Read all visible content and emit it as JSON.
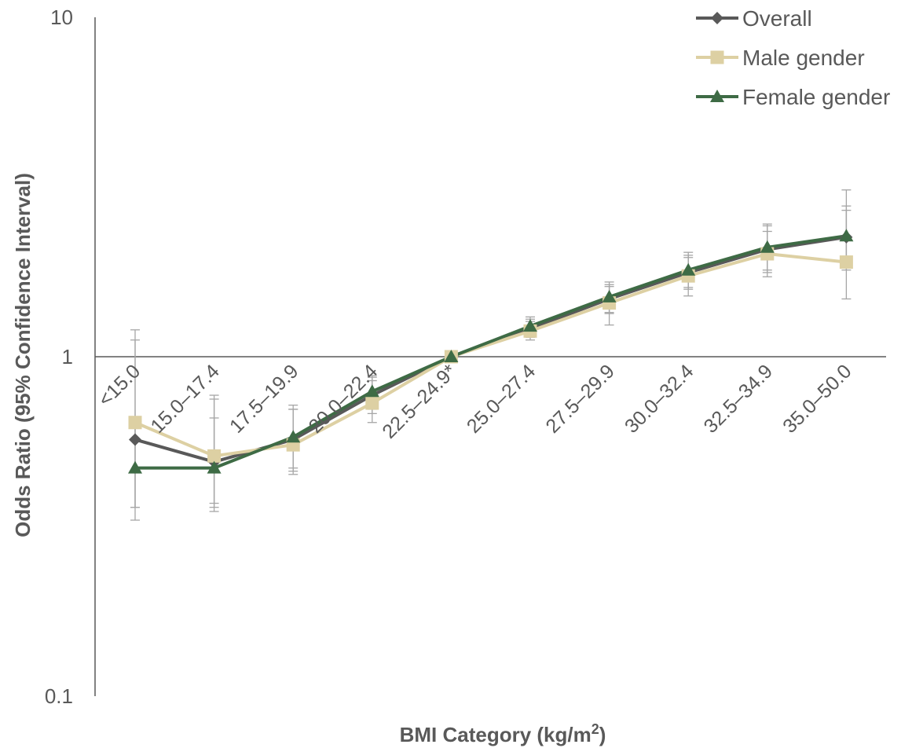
{
  "chart_data": {
    "type": "line",
    "xlabel": "BMI Category (kg/m",
    "xlabel_sup": "2",
    "xlabel_close": ")",
    "ylabel": "Odds Ratio (95% Confidence Interval)",
    "y_scale": "log",
    "ylim": [
      0.1,
      10
    ],
    "y_ticks": [
      {
        "value": 10,
        "label": "10"
      },
      {
        "value": 1,
        "label": "1"
      },
      {
        "value": 0.1,
        "label": "0.1"
      }
    ],
    "reference_line": 1,
    "legend_position": "top-right",
    "categories": [
      "<15.0",
      "15.0–17.4",
      "17.5–19.9",
      "20.0–22.4",
      "22.5–24.9*",
      "25.0–27.4",
      "27.5–29.9",
      "30.0–32.4",
      "32.5–34.9",
      "35.0–50.0"
    ],
    "series": [
      {
        "name": "Overall",
        "color": "#595959",
        "marker": "diamond",
        "values": [
          0.57,
          0.49,
          0.57,
          0.77,
          1.0,
          1.21,
          1.48,
          1.77,
          2.07,
          2.25
        ],
        "ci_low": [
          0.36,
          0.36,
          0.46,
          0.68,
          1.0,
          1.14,
          1.34,
          1.58,
          1.77,
          1.8
        ],
        "ci_high": [
          1.12,
          0.77,
          0.7,
          0.88,
          1.0,
          1.29,
          1.63,
          1.99,
          2.43,
          2.7
        ]
      },
      {
        "name": "Male gender",
        "color": "#DDD0A3",
        "marker": "square",
        "values": [
          0.64,
          0.51,
          0.55,
          0.73,
          1.0,
          1.19,
          1.44,
          1.73,
          2.01,
          1.9
        ],
        "ci_low": [
          0.33,
          0.37,
          0.45,
          0.64,
          1.0,
          1.12,
          1.24,
          1.51,
          1.72,
          1.48
        ],
        "ci_high": [
          1.2,
          0.75,
          0.72,
          0.85,
          1.0,
          1.27,
          1.61,
          1.96,
          2.34,
          3.1
        ]
      },
      {
        "name": "Female gender",
        "color": "#3E6B45",
        "marker": "triangle",
        "values": [
          0.47,
          0.47,
          0.58,
          0.79,
          1.0,
          1.23,
          1.5,
          1.8,
          2.1,
          2.27
        ],
        "ci_low": [
          0.36,
          0.35,
          0.47,
          0.7,
          1.0,
          1.15,
          1.35,
          1.6,
          1.8,
          1.85
        ],
        "ci_high": [
          0.66,
          0.66,
          0.7,
          0.87,
          1.0,
          1.31,
          1.66,
          2.03,
          2.46,
          2.78
        ]
      }
    ]
  }
}
